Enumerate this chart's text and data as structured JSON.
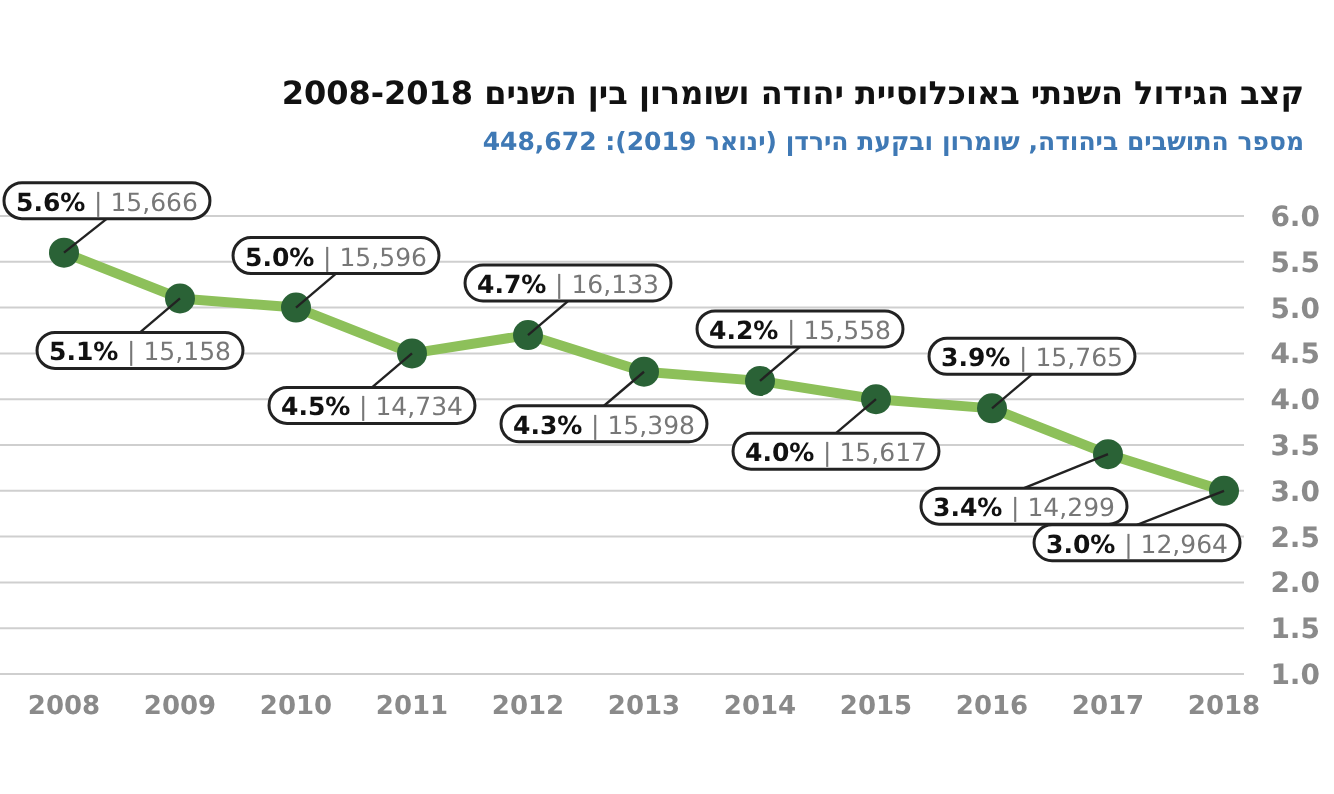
{
  "chart_data": {
    "type": "line",
    "title": "קצב הגידול השנתי באוכלוסיית יהודה ושומרון בין השנים 2008-2018",
    "subtitle": "מספר התושבים ביהודה, שומרון ובקעת הירדן (ינואר 2019): 448,672",
    "categories": [
      "2008",
      "2009",
      "2010",
      "2011",
      "2012",
      "2013",
      "2014",
      "2015",
      "2016",
      "2017",
      "2018"
    ],
    "series": [
      {
        "color": "#8dc05a",
        "colors": [
          "#2a6236",
          "#2a6236",
          "#2a6236",
          "#2a6236",
          "#2a6236",
          "#2a6236",
          "#2a6236",
          "#2a6236",
          "#2a6236",
          "#2a6236",
          "#2a6236"
        ],
        "values": [
          5.6,
          5.1,
          5.0,
          4.5,
          4.7,
          4.3,
          4.2,
          4.0,
          3.9,
          3.4,
          3.0
        ],
        "value_labels": [
          "5.6% | 15,666",
          "5.1% | 15,158",
          "5.0% | 15,596",
          "4.5% | 14,734",
          "4.7% | 16,133",
          "4.3% | 15,398",
          "4.2% | 15,558",
          "4.0% | 15,617",
          "3.9% | 15,765",
          "3.4% | 14,299",
          "3.0% | 12,964"
        ]
      }
    ],
    "ylim": [
      1.0,
      6.0
    ],
    "yticks": [
      {
        "value": 1.0,
        "label": "1.0"
      },
      {
        "value": 1.5,
        "label": "1.5"
      },
      {
        "value": 2.0,
        "label": "2.0"
      },
      {
        "value": 2.5,
        "label": "2.5"
      },
      {
        "value": 3.0,
        "label": "3.0"
      },
      {
        "value": 3.5,
        "label": "3.5"
      },
      {
        "value": 4.0,
        "label": "4.0"
      },
      {
        "value": 4.5,
        "label": "4.5"
      },
      {
        "value": 5.0,
        "label": "5.0"
      },
      {
        "value": 5.5,
        "label": "5.5"
      },
      {
        "value": 6.0,
        "label": "6.0"
      }
    ],
    "grid": "y",
    "marker": "circle"
  }
}
